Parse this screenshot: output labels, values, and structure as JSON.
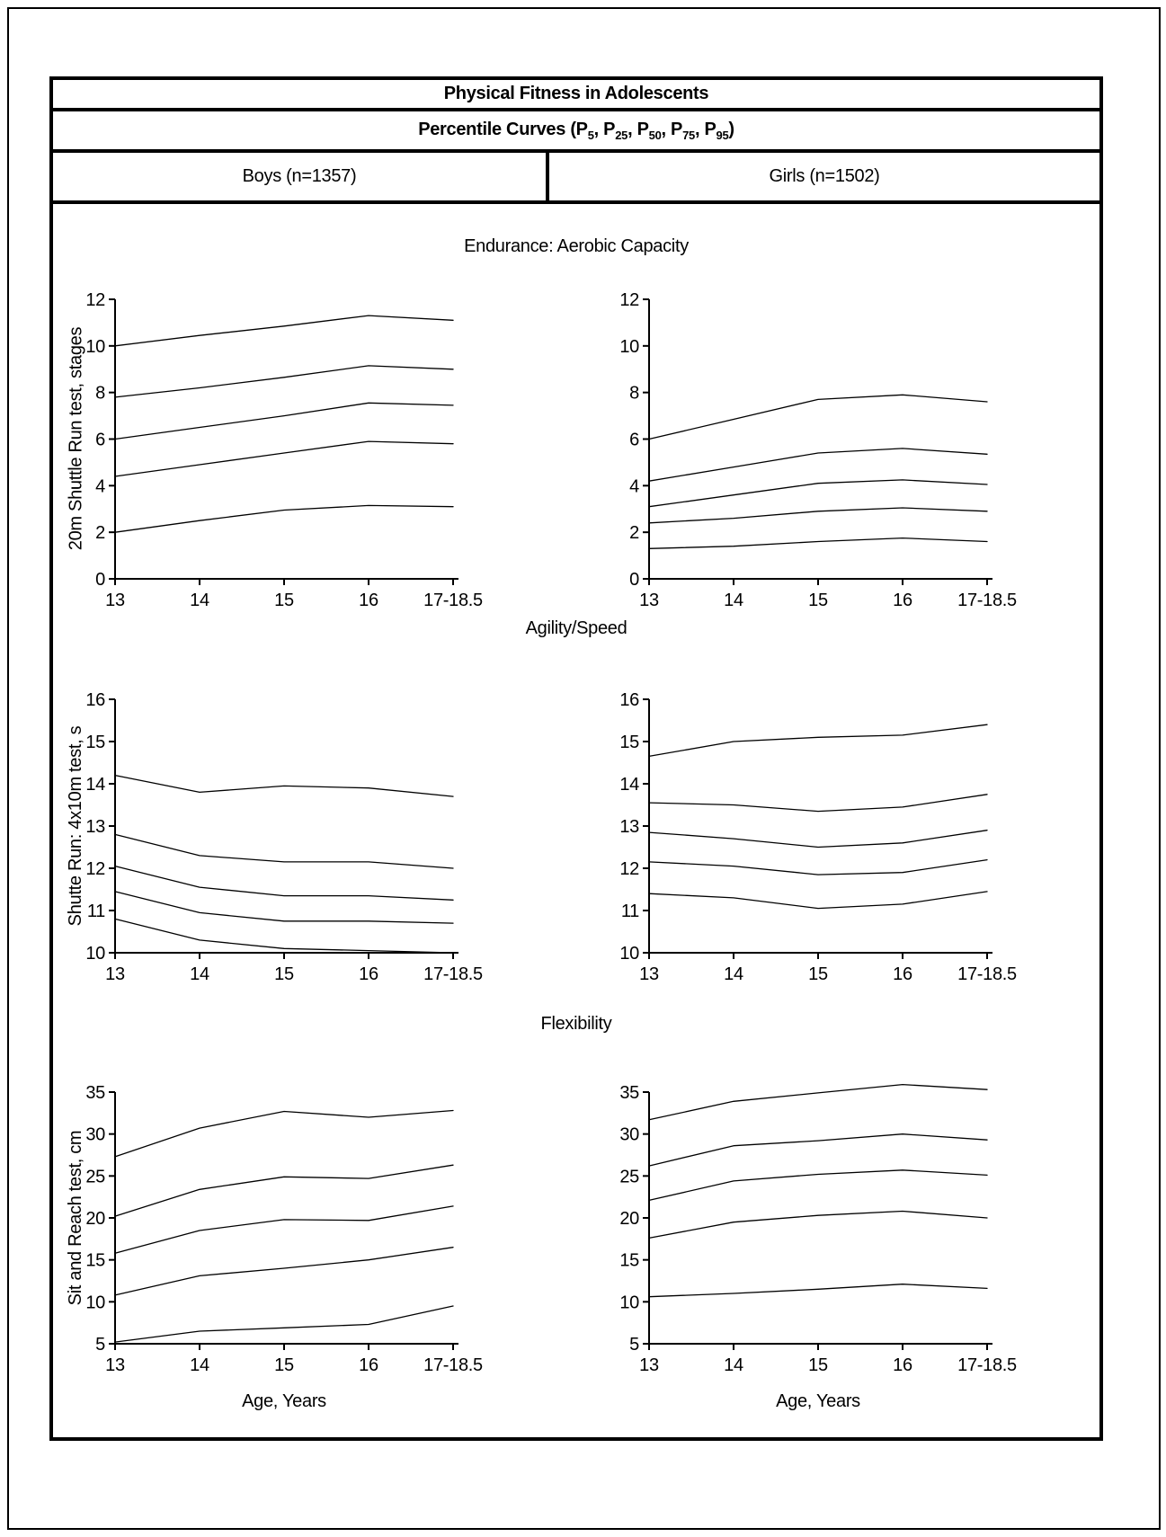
{
  "figure": {
    "title": "Physical Fitness in Adolescents",
    "subtitle_plain": "Percentile Curves (P5, P25, P50, P75, P95)",
    "subtitle_parts": [
      {
        "t": "Percentile Curves (P"
      },
      {
        "s": "5"
      },
      {
        "t": ", P"
      },
      {
        "s": "25"
      },
      {
        "t": ", P"
      },
      {
        "s": "50"
      },
      {
        "t": ", P"
      },
      {
        "s": "75"
      },
      {
        "t": ", P"
      },
      {
        "s": "95"
      },
      {
        "t": ")"
      }
    ],
    "columns": [
      {
        "label": "Boys (n=1357)"
      },
      {
        "label": "Girls (n=1502)"
      }
    ],
    "xlabel": "Age, Years",
    "x_categories": [
      "13",
      "14",
      "15",
      "16",
      "17-18.5"
    ],
    "sections": [
      {
        "title": "Endurance: Aerobic Capacity",
        "ylabel": "20m Shuttle Run test, stages"
      },
      {
        "title": "Agility/Speed",
        "ylabel": "Shutte Run: 4x10m test, s"
      },
      {
        "title": "Flexibility",
        "ylabel": "Sit and Reach test, cm"
      }
    ],
    "line_color": "#000000"
  },
  "chart_data": [
    {
      "id": "boys-endurance",
      "type": "line",
      "panel": "Boys (n=1357)",
      "section": "Endurance: Aerobic Capacity",
      "section_index": 0,
      "x": [
        "13",
        "14",
        "15",
        "16",
        "17-18.5"
      ],
      "ylim": [
        0,
        12
      ],
      "yticks": [
        0,
        2,
        4,
        6,
        8,
        10,
        12
      ],
      "series": [
        {
          "name": "P95",
          "values": [
            10.0,
            10.45,
            10.85,
            11.3,
            11.1
          ]
        },
        {
          "name": "P75",
          "values": [
            7.8,
            8.2,
            8.65,
            9.15,
            9.0
          ]
        },
        {
          "name": "P50",
          "values": [
            6.0,
            6.5,
            7.0,
            7.55,
            7.45
          ]
        },
        {
          "name": "P25",
          "values": [
            4.4,
            4.9,
            5.4,
            5.9,
            5.8
          ]
        },
        {
          "name": "P5",
          "values": [
            2.0,
            2.5,
            2.95,
            3.15,
            3.1
          ]
        }
      ]
    },
    {
      "id": "girls-endurance",
      "type": "line",
      "panel": "Girls (n=1502)",
      "section": "Endurance: Aerobic Capacity",
      "section_index": 0,
      "x": [
        "13",
        "14",
        "15",
        "16",
        "17-18.5"
      ],
      "ylim": [
        0,
        12
      ],
      "yticks": [
        0,
        2,
        4,
        6,
        8,
        10,
        12
      ],
      "series": [
        {
          "name": "P95",
          "values": [
            6.0,
            6.85,
            7.7,
            7.9,
            7.6
          ]
        },
        {
          "name": "P75",
          "values": [
            4.2,
            4.8,
            5.4,
            5.6,
            5.35
          ]
        },
        {
          "name": "P50",
          "values": [
            3.1,
            3.6,
            4.1,
            4.25,
            4.05
          ]
        },
        {
          "name": "P25",
          "values": [
            2.4,
            2.6,
            2.9,
            3.05,
            2.9
          ]
        },
        {
          "name": "P5",
          "values": [
            1.3,
            1.4,
            1.6,
            1.75,
            1.6
          ]
        }
      ]
    },
    {
      "id": "boys-agility",
      "type": "line",
      "panel": "Boys (n=1357)",
      "section": "Agility/Speed",
      "section_index": 1,
      "x": [
        "13",
        "14",
        "15",
        "16",
        "17-18.5"
      ],
      "ylim": [
        10,
        16
      ],
      "yticks": [
        10,
        11,
        12,
        13,
        14,
        15,
        16
      ],
      "series": [
        {
          "name": "P95",
          "values": [
            14.2,
            13.8,
            13.95,
            13.9,
            13.7
          ]
        },
        {
          "name": "P75",
          "values": [
            12.8,
            12.3,
            12.15,
            12.15,
            12.0
          ]
        },
        {
          "name": "P50",
          "values": [
            12.05,
            11.55,
            11.35,
            11.35,
            11.25
          ]
        },
        {
          "name": "P25",
          "values": [
            11.45,
            10.95,
            10.75,
            10.75,
            10.7
          ]
        },
        {
          "name": "P5",
          "values": [
            10.8,
            10.3,
            10.1,
            10.05,
            10.0
          ]
        }
      ]
    },
    {
      "id": "girls-agility",
      "type": "line",
      "panel": "Girls (n=1502)",
      "section": "Agility/Speed",
      "section_index": 1,
      "x": [
        "13",
        "14",
        "15",
        "16",
        "17-18.5"
      ],
      "ylim": [
        10,
        16
      ],
      "yticks": [
        10,
        11,
        12,
        13,
        14,
        15,
        16
      ],
      "series": [
        {
          "name": "P95",
          "values": [
            14.65,
            15.0,
            15.1,
            15.15,
            15.4
          ]
        },
        {
          "name": "P75",
          "values": [
            13.55,
            13.5,
            13.35,
            13.45,
            13.75
          ]
        },
        {
          "name": "P50",
          "values": [
            12.85,
            12.7,
            12.5,
            12.6,
            12.9
          ]
        },
        {
          "name": "P25",
          "values": [
            12.15,
            12.05,
            11.85,
            11.9,
            12.2
          ]
        },
        {
          "name": "P5",
          "values": [
            11.4,
            11.3,
            11.05,
            11.15,
            11.45
          ]
        }
      ]
    },
    {
      "id": "boys-flexibility",
      "type": "line",
      "panel": "Boys (n=1357)",
      "section": "Flexibility",
      "section_index": 2,
      "x": [
        "13",
        "14",
        "15",
        "16",
        "17-18.5"
      ],
      "ylim": [
        5,
        35
      ],
      "yticks": [
        5,
        10,
        15,
        20,
        25,
        30,
        35
      ],
      "series": [
        {
          "name": "P95",
          "values": [
            27.3,
            30.7,
            32.7,
            32.0,
            32.8
          ]
        },
        {
          "name": "P75",
          "values": [
            20.2,
            23.4,
            24.9,
            24.7,
            26.3
          ]
        },
        {
          "name": "P50",
          "values": [
            15.8,
            18.5,
            19.8,
            19.7,
            21.4
          ]
        },
        {
          "name": "P25",
          "values": [
            10.8,
            13.1,
            14.0,
            15.0,
            16.5
          ]
        },
        {
          "name": "P5",
          "values": [
            5.2,
            6.5,
            6.9,
            7.3,
            9.5
          ]
        }
      ]
    },
    {
      "id": "girls-flexibility",
      "type": "line",
      "panel": "Girls (n=1502)",
      "section": "Flexibility",
      "section_index": 2,
      "x": [
        "13",
        "14",
        "15",
        "16",
        "17-18.5"
      ],
      "ylim": [
        5,
        35
      ],
      "yticks": [
        5,
        10,
        15,
        20,
        25,
        30,
        35
      ],
      "series": [
        {
          "name": "P95",
          "values": [
            31.7,
            33.9,
            34.9,
            35.9,
            35.3
          ]
        },
        {
          "name": "P75",
          "values": [
            26.2,
            28.6,
            29.2,
            30.0,
            29.3
          ]
        },
        {
          "name": "P50",
          "values": [
            22.1,
            24.4,
            25.2,
            25.7,
            25.1
          ]
        },
        {
          "name": "P25",
          "values": [
            17.6,
            19.5,
            20.3,
            20.8,
            20.0
          ]
        },
        {
          "name": "P5",
          "values": [
            10.6,
            11.0,
            11.5,
            12.1,
            11.6
          ]
        }
      ]
    }
  ]
}
